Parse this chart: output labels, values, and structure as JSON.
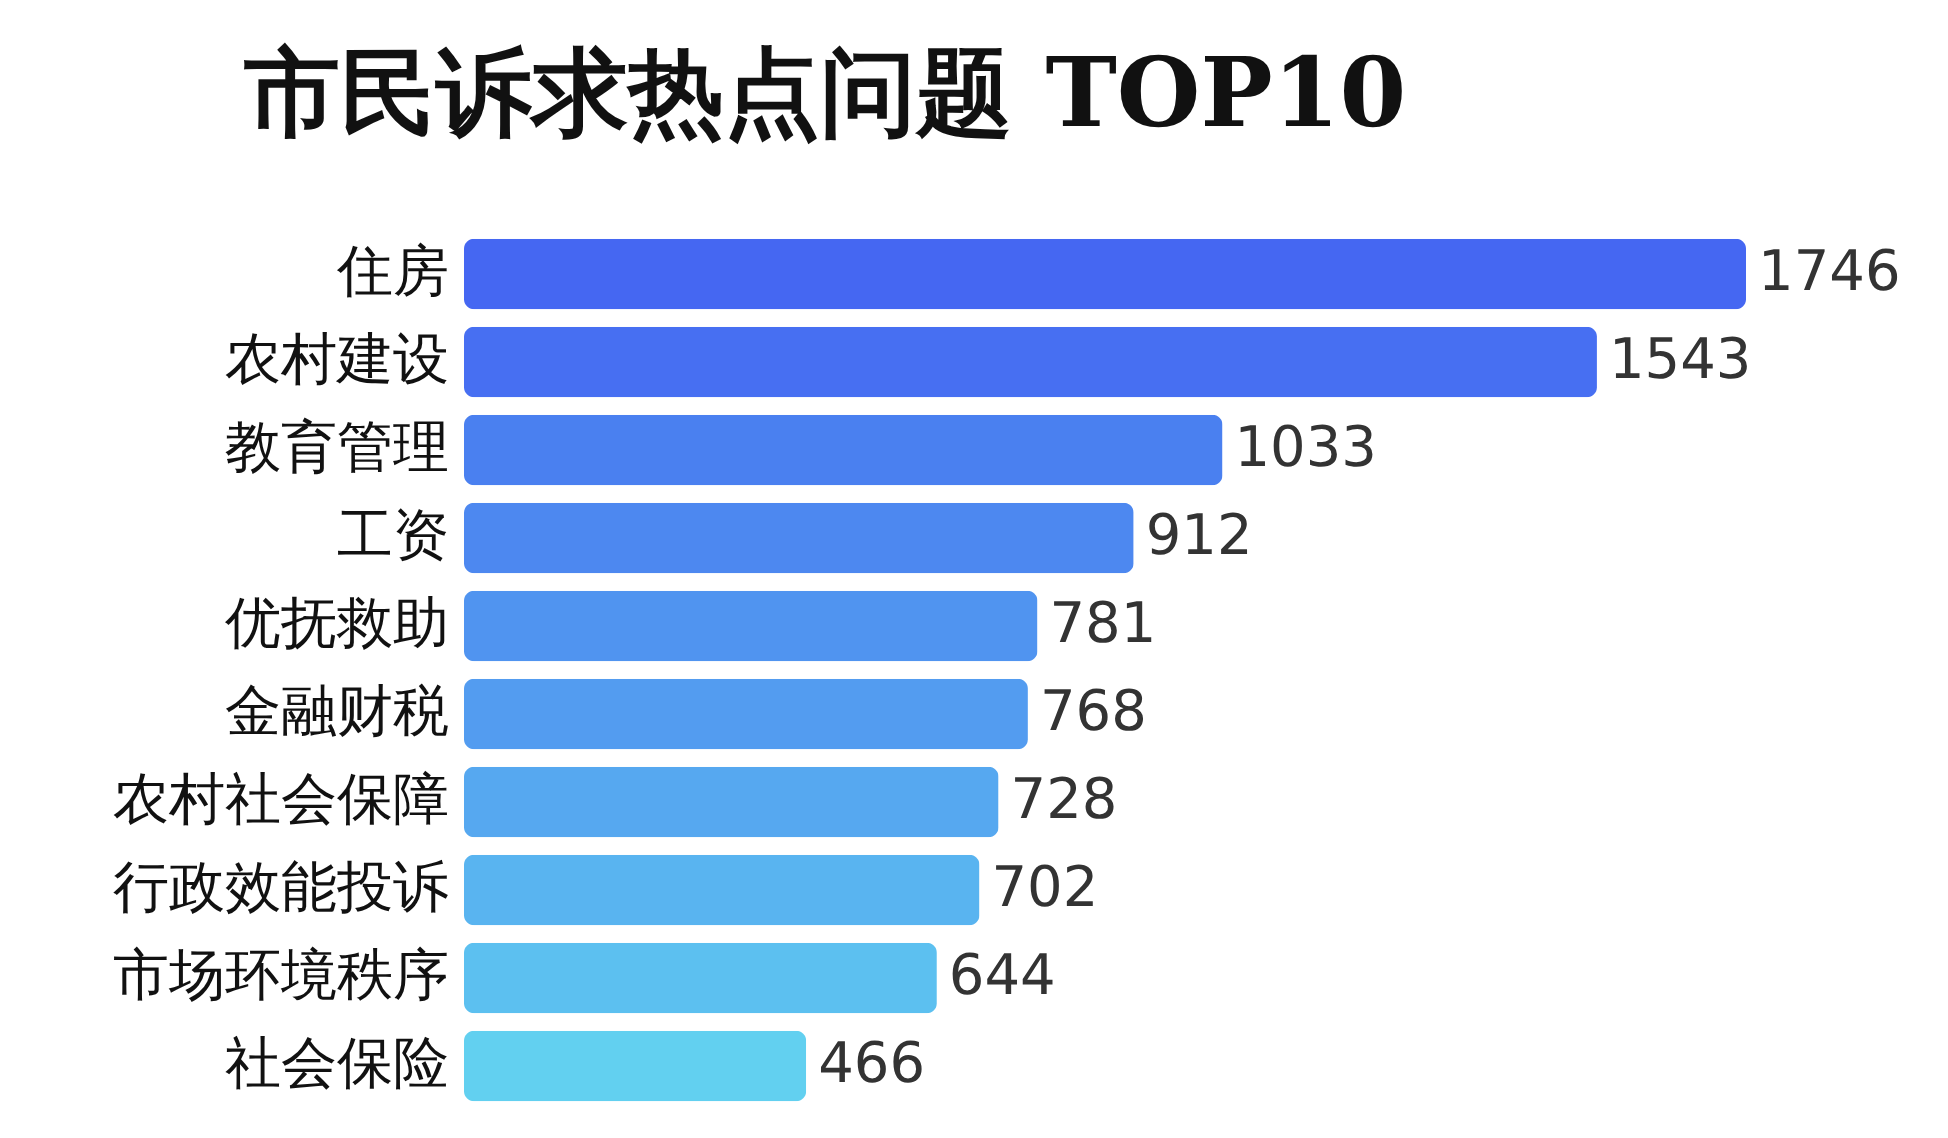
{
  "chart_data": {
    "type": "bar",
    "orientation": "horizontal",
    "title": "市民诉求热点问题 TOP10",
    "categories": [
      "住房",
      "农村建设",
      "教育管理",
      "工资",
      "优抚救助",
      "金融财税",
      "农村社会保障",
      "行政效能投诉",
      "市场环境秩序",
      "社会保险"
    ],
    "values": [
      1746,
      1543,
      1033,
      912,
      781,
      768,
      728,
      702,
      644,
      466
    ],
    "colors": [
      "#4567f2",
      "#476ff2",
      "#4a80f0",
      "#4d88f0",
      "#5094f0",
      "#539cf0",
      "#56a8f0",
      "#59b4f0",
      "#5cc0f0",
      "#62d0f0"
    ],
    "data_labels": true,
    "grid": false
  }
}
